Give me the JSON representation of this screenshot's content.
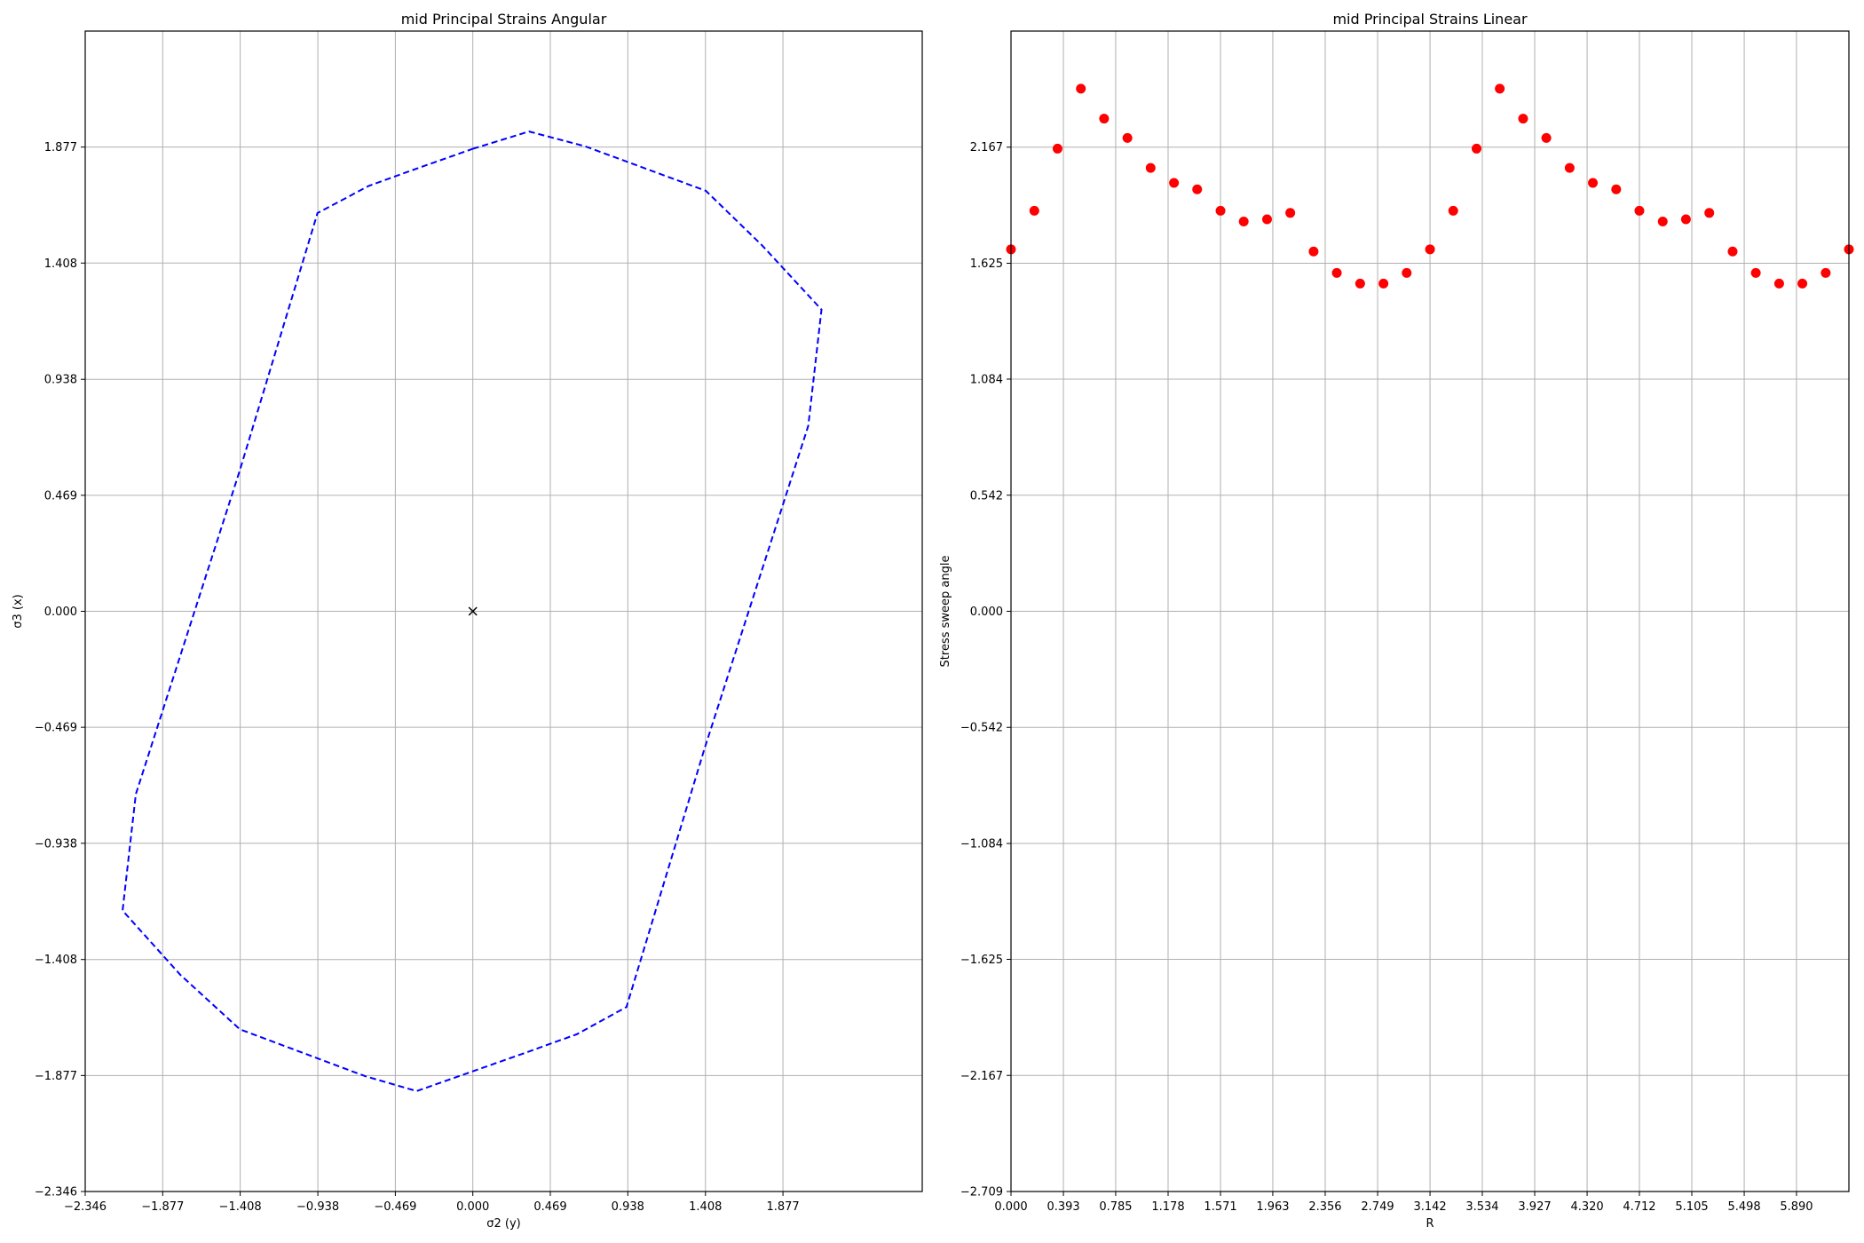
{
  "chart_data": [
    {
      "type": "line",
      "title": "mid Principal Strains Angular",
      "xlabel": "σ2 (y)",
      "ylabel": "σ3 (x)",
      "xlim": [
        -2.346,
        2.72
      ],
      "ylim": [
        -2.346,
        2.346
      ],
      "xticks": [
        "−2.346",
        "−1.877",
        "−1.408",
        "−0.938",
        "−0.469",
        "0.000",
        "0.469",
        "0.938",
        "1.408",
        "1.877"
      ],
      "xtick_values": [
        -2.346,
        -1.877,
        -1.408,
        -0.938,
        -0.469,
        0.0,
        0.469,
        0.938,
        1.408,
        1.877
      ],
      "yticks": [
        "−2.346",
        "−1.877",
        "−1.408",
        "−0.938",
        "−0.469",
        "0.000",
        "0.469",
        "0.938",
        "1.408",
        "1.877"
      ],
      "ytick_values": [
        -2.346,
        -1.877,
        -1.408,
        -0.938,
        -0.469,
        0.0,
        0.469,
        0.938,
        1.408,
        1.877
      ],
      "grid": true,
      "series": [
        {
          "name": "envelope",
          "style": "dashed",
          "color": "#0000ff",
          "x": [
            0.0,
            0.34,
            0.68,
            1.41,
            1.75,
            2.11,
            2.03,
            1.4,
            0.93,
            0.63,
            0.34,
            0.0,
            -0.34,
            -0.65,
            -1.41,
            -1.77,
            -2.12,
            -2.04,
            -1.41,
            -0.94,
            -0.63,
            -0.34,
            0.0
          ],
          "y": [
            1.87,
            1.94,
            1.88,
            1.7,
            1.48,
            1.22,
            0.75,
            -0.56,
            -1.6,
            -1.71,
            -1.78,
            -1.86,
            -1.94,
            -1.88,
            -1.69,
            -1.47,
            -1.21,
            -0.74,
            0.57,
            1.61,
            1.72,
            1.79,
            1.87
          ]
        }
      ],
      "markers": [
        {
          "name": "origin",
          "symbol": "x",
          "color": "#000000",
          "x": 0.0,
          "y": 0.0
        }
      ]
    },
    {
      "type": "scatter",
      "title": "mid Principal Strains Linear",
      "xlabel": "R",
      "ylabel": "Stress sweep angle",
      "xlim": [
        0.0,
        6.283
      ],
      "ylim": [
        -2.709,
        2.709
      ],
      "xticks": [
        "0.000",
        "0.393",
        "0.785",
        "1.178",
        "1.571",
        "1.963",
        "2.356",
        "2.749",
        "3.142",
        "3.534",
        "3.927",
        "4.320",
        "4.712",
        "5.105",
        "5.498",
        "5.890"
      ],
      "xtick_values": [
        0.0,
        0.393,
        0.785,
        1.178,
        1.571,
        1.963,
        2.356,
        2.749,
        3.142,
        3.534,
        3.927,
        4.32,
        4.712,
        5.105,
        5.498,
        5.89
      ],
      "yticks": [
        "−2.709",
        "−2.167",
        "−1.625",
        "−1.084",
        "−0.542",
        "0.000",
        "0.542",
        "1.084",
        "1.625",
        "2.167"
      ],
      "ytick_values": [
        -2.709,
        -2.167,
        -1.625,
        -1.084,
        -0.542,
        0.0,
        0.542,
        1.084,
        1.625,
        2.167
      ],
      "grid": true,
      "series": [
        {
          "name": "points",
          "color": "#ff0000",
          "x": [
            0.0,
            0.175,
            0.349,
            0.524,
            0.698,
            0.873,
            1.047,
            1.222,
            1.396,
            1.571,
            1.745,
            1.92,
            2.094,
            2.269,
            2.443,
            2.618,
            2.793,
            2.967,
            3.142,
            3.316,
            3.491,
            3.665,
            3.84,
            4.014,
            4.189,
            4.363,
            4.538,
            4.712,
            4.887,
            5.061,
            5.236,
            5.411,
            5.585,
            5.76,
            5.934,
            6.109,
            6.283
          ],
          "y": [
            1.69,
            1.87,
            2.16,
            2.44,
            2.3,
            2.21,
            2.07,
            2.0,
            1.97,
            1.87,
            1.82,
            1.83,
            1.86,
            1.68,
            1.58,
            1.53,
            1.53,
            1.58,
            1.69,
            1.87,
            2.16,
            2.44,
            2.3,
            2.21,
            2.07,
            2.0,
            1.97,
            1.87,
            1.82,
            1.83,
            1.86,
            1.68,
            1.58,
            1.53,
            1.53,
            1.58,
            1.69
          ]
        }
      ]
    }
  ]
}
